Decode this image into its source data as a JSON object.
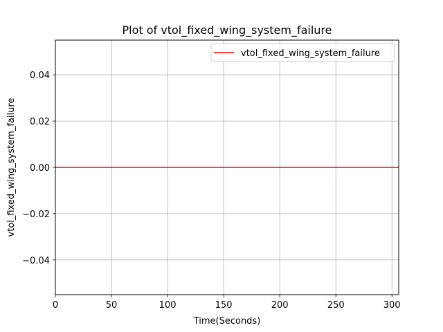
{
  "chart_data": {
    "type": "line",
    "title": "Plot of vtol_fixed_wing_system_failure",
    "xlabel": "Time(Seconds)",
    "ylabel": "vtol_fixed_wing_system_failure",
    "xlim": [
      0,
      306
    ],
    "ylim": [
      -0.055,
      0.055
    ],
    "x_ticks": [
      0,
      50,
      100,
      150,
      200,
      250,
      300
    ],
    "y_ticks": [
      -0.04,
      -0.02,
      0.0,
      0.02,
      0.04
    ],
    "y_tick_labels": [
      "−0.04",
      "−0.02",
      "0.00",
      "0.02",
      "0.04"
    ],
    "grid": true,
    "legend_position": "top-right",
    "series": [
      {
        "name": "vtol_fixed_wing_system_failure",
        "color": "#ff0000",
        "x": [
          0,
          306
        ],
        "y": [
          0,
          0
        ]
      }
    ]
  }
}
